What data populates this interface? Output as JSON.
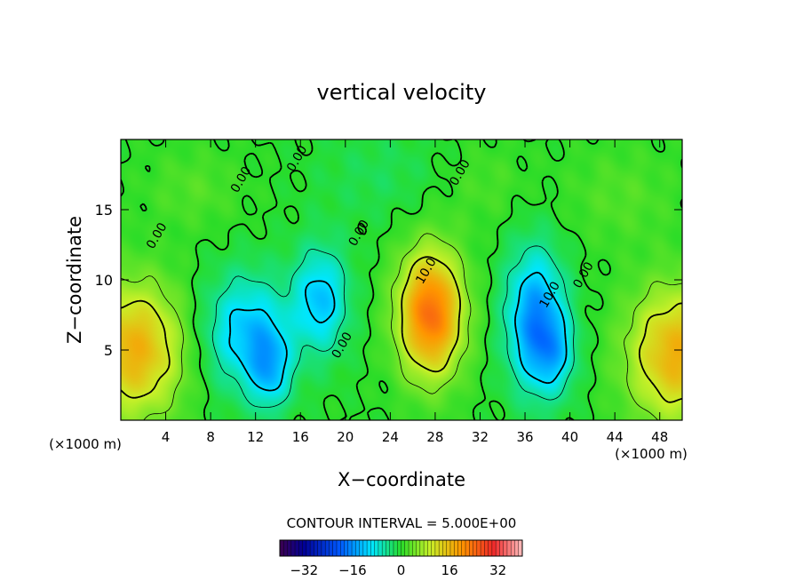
{
  "chart_data": {
    "type": "heatmap",
    "title": "vertical velocity",
    "xlabel": "X−coordinate",
    "ylabel": "Z−coordinate",
    "x_unit_left": "(×1000 m)",
    "x_unit_right": "(×1000 m)",
    "xlim": [
      0,
      50
    ],
    "ylim": [
      0,
      20
    ],
    "x_ticks": [
      4,
      8,
      12,
      16,
      20,
      24,
      28,
      32,
      36,
      40,
      44,
      48
    ],
    "y_ticks": [
      5,
      10,
      15
    ],
    "x_tick_labels": [
      "4",
      "8",
      "12",
      "16",
      "20",
      "24",
      "28",
      "32",
      "36",
      "40",
      "44",
      "48"
    ],
    "y_tick_labels": [
      "5",
      "10",
      "15"
    ],
    "contour_interval_text": "CONTOUR INTERVAL = 5.000E+00",
    "contour_levels": [
      -10,
      -5,
      0,
      5,
      10
    ],
    "contour_labels": [
      {
        "text": "0.00",
        "x": 21.5,
        "z": 13.2
      },
      {
        "text": "0.00",
        "x": 11.0,
        "z": 17.0
      },
      {
        "text": "0.00",
        "x": 16.0,
        "z": 18.5
      },
      {
        "text": "0.00",
        "x": 3.5,
        "z": 13.0
      },
      {
        "text": "0.00",
        "x": 20.0,
        "z": 5.2
      },
      {
        "text": "0.00",
        "x": 30.5,
        "z": 17.5
      },
      {
        "text": "10.0",
        "x": 27.5,
        "z": 10.5
      },
      {
        "text": "10.0",
        "x": 38.5,
        "z": 8.8
      },
      {
        "text": "0.00",
        "x": 41.5,
        "z": 10.2
      }
    ],
    "field_extrema": [
      {
        "kind": "max",
        "x": 27.5,
        "z": 7.5,
        "value": 24
      },
      {
        "kind": "max",
        "x": 1.5,
        "z": 5.0,
        "value": 16
      },
      {
        "kind": "max",
        "x": 49.0,
        "z": 4.5,
        "value": 16
      },
      {
        "kind": "min",
        "x": 11.5,
        "z": 6.5,
        "value": -14
      },
      {
        "kind": "min",
        "x": 18.0,
        "z": 8.5,
        "value": -14
      },
      {
        "kind": "min",
        "x": 37.0,
        "z": 7.0,
        "value": -18
      }
    ],
    "colorbar": {
      "range": [
        -40,
        40
      ],
      "ticks": [
        -32,
        -16,
        0,
        16,
        32
      ],
      "tick_labels": [
        "−32",
        "−16",
        "0",
        "16",
        "32"
      ]
    },
    "grid": false,
    "legend": "none"
  }
}
